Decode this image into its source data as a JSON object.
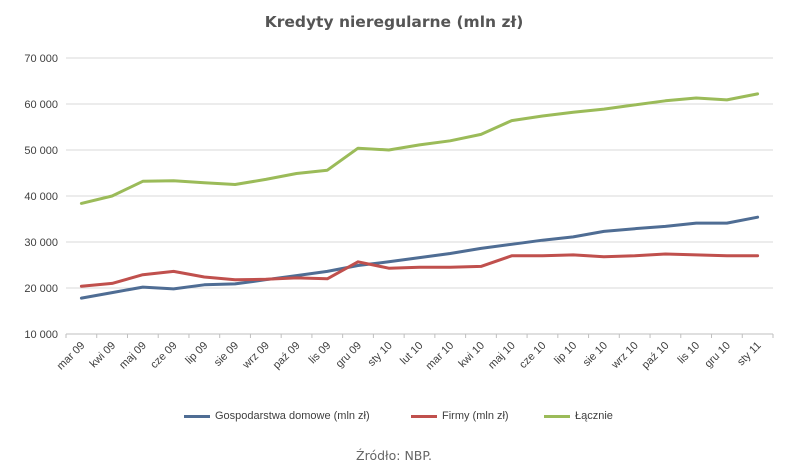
{
  "chart_data": {
    "type": "line",
    "title": "Kredyty nieregularne (mln zł)",
    "xlabel": "",
    "ylabel": "",
    "ylim": [
      10000,
      70000
    ],
    "yticks": [
      10000,
      20000,
      30000,
      40000,
      50000,
      60000,
      70000
    ],
    "ytick_labels": [
      "10 000",
      "20 000",
      "30 000",
      "40 000",
      "50 000",
      "60 000",
      "70 000"
    ],
    "grid": true,
    "legend": "bottom",
    "categories": [
      "mar 09",
      "kwi 09",
      "maj 09",
      "cze 09",
      "lip 09",
      "sie 09",
      "wrz 09",
      "paź 09",
      "lis 09",
      "gru 09",
      "sty 10",
      "lut 10",
      "mar 10",
      "kwi 10",
      "maj 10",
      "cze 10",
      "lip 10",
      "sie 10",
      "wrz 10",
      "paź 10",
      "lis 10",
      "gru 10",
      "sty 11"
    ],
    "series": [
      {
        "name": "Gospodarstwa domowe (mln zł)",
        "color": "#4F6D94",
        "values": [
          17800,
          19000,
          20200,
          19800,
          20700,
          20900,
          21800,
          22700,
          23600,
          24900,
          25700,
          26600,
          27500,
          28600,
          29500,
          30400,
          31100,
          32300,
          32900,
          33400,
          34100,
          34100,
          35400
        ]
      },
      {
        "name": "Firmy (mln zł)",
        "color": "#C0504D",
        "values": [
          20400,
          21000,
          22900,
          23600,
          22400,
          21800,
          21900,
          22200,
          22000,
          25700,
          24300,
          24500,
          24500,
          24700,
          27000,
          27000,
          27200,
          26800,
          27000,
          27400,
          27200,
          27000,
          27000
        ]
      },
      {
        "name": "Łącznie",
        "color": "#9BBB59",
        "values": [
          38400,
          40000,
          43200,
          43300,
          42900,
          42500,
          43600,
          44900,
          45600,
          50400,
          50000,
          51100,
          52000,
          53400,
          56400,
          57400,
          58200,
          58900,
          59800,
          60700,
          61300,
          60900,
          62200
        ]
      }
    ]
  },
  "source": "Źródło: NBP."
}
